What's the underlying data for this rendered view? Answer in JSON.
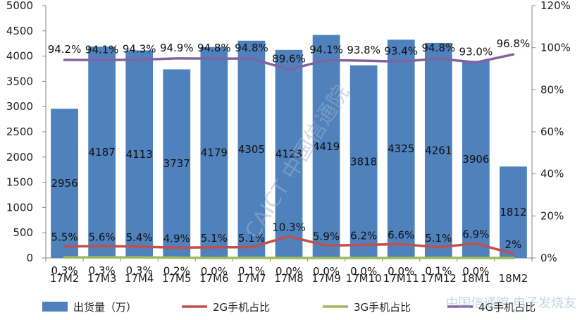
{
  "chart_data": {
    "type": "bar",
    "categories": [
      "17M2",
      "17M3",
      "17M4",
      "17M5",
      "17M6",
      "17M7",
      "17M8",
      "17M9",
      "17M10",
      "17M11",
      "17M12",
      "18M1",
      "18M2"
    ],
    "bar_series": {
      "name": "出货量（万）",
      "color": "#4f81bd",
      "values": [
        2956,
        4187,
        4113,
        3737,
        4179,
        4305,
        4123,
        4419,
        3818,
        4325,
        4261,
        3906,
        1812
      ],
      "labels": [
        "2956",
        "4187",
        "4113",
        "3737",
        "4179",
        "4305",
        "4123",
        "4419",
        "3818",
        "4325",
        "4261",
        "3906",
        "1812"
      ]
    },
    "line_series": [
      {
        "name": "2G手机占比",
        "color": "#c0504d",
        "values": [
          5.5,
          5.6,
          5.4,
          4.9,
          5.1,
          5.1,
          10.3,
          5.9,
          6.2,
          6.6,
          5.1,
          6.9,
          2.0
        ],
        "labels": [
          "5.5%",
          "5.6%",
          "5.4%",
          "4.9%",
          "5.1%",
          "5.1%",
          "10.3%",
          "5.9%",
          "6.2%",
          "6.6%",
          "5.1%",
          "6.9%",
          "2%"
        ]
      },
      {
        "name": "3G手机占比",
        "color": "#9bbb59",
        "values": [
          0.3,
          0.3,
          0.3,
          0.2,
          0.0,
          0.1,
          0.0,
          0.0,
          0.0,
          0.0,
          0.1,
          0.0,
          0.0
        ],
        "labels": [
          "0.3%",
          "0.3%",
          "0.3%",
          "0.2%",
          "0.0%",
          "0.1%",
          "0.0%",
          "0.0%",
          "0.0%",
          "0.0%",
          "0.1%",
          "0.0%",
          ""
        ]
      },
      {
        "name": "4G手机占比",
        "color": "#8064a2",
        "values": [
          94.2,
          94.1,
          94.3,
          94.9,
          94.8,
          94.8,
          89.6,
          94.1,
          93.8,
          93.4,
          94.8,
          93.0,
          96.8
        ],
        "labels": [
          "94.2%",
          "94.1%",
          "94.3%",
          "94.9%",
          "94.8%",
          "94.8%",
          "89.6%",
          "94.1%",
          "93.8%",
          "93.4%",
          "94.8%",
          "93.0%",
          "96.8%"
        ]
      }
    ],
    "y_left": {
      "ylim": [
        0,
        5000
      ],
      "ticks": [
        "0",
        "500",
        "1000",
        "1500",
        "2000",
        "2500",
        "3000",
        "3500",
        "4000",
        "4500",
        "5000"
      ]
    },
    "y_right": {
      "ylim": [
        0,
        120
      ],
      "ticks": [
        "0%",
        "20%",
        "40%",
        "60%",
        "80%",
        "100%",
        "120%"
      ]
    },
    "grid": false,
    "legend_position": "bottom"
  },
  "watermarks": {
    "center_text": "CAICT 中国信通院",
    "bottom_right_text": "中国信通院 电子发烧友"
  }
}
